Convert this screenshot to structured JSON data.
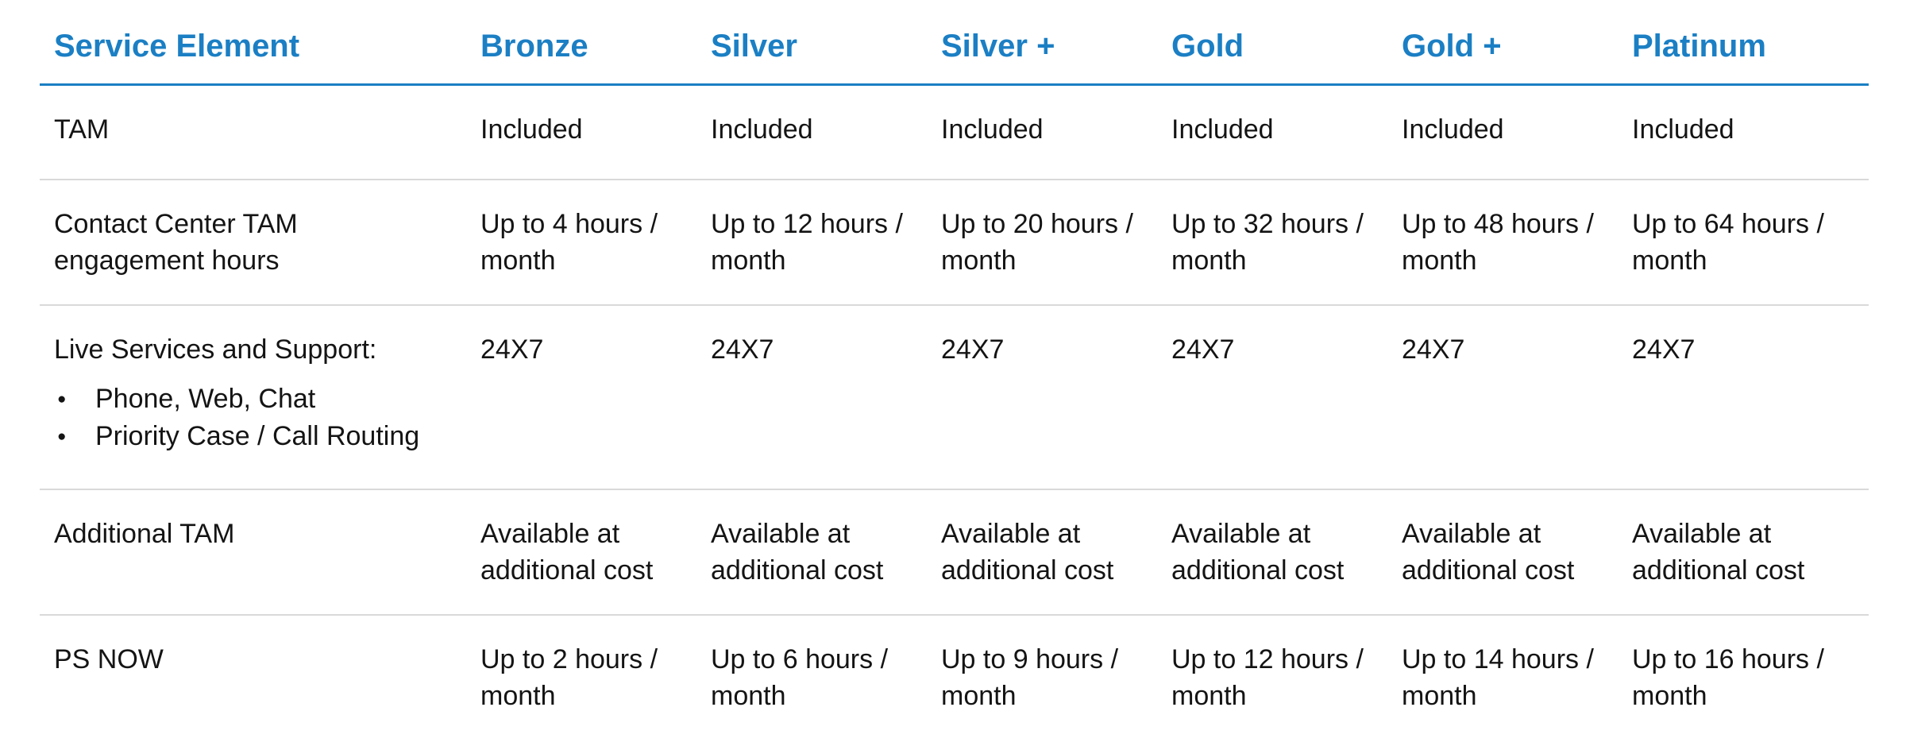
{
  "theme": {
    "accent_blue": "#1b7fc4",
    "text_color": "#141414",
    "divider_color": "#d9d9d9",
    "background": "#ffffff"
  },
  "table": {
    "columns": [
      "Service Element",
      "Bronze",
      "Silver",
      "Silver +",
      "Gold",
      "Gold +",
      "Platinum"
    ],
    "rows": [
      {
        "label": "TAM",
        "values": [
          "Included",
          "Included",
          "Included",
          "Included",
          "Included",
          "Included"
        ]
      },
      {
        "label": "Contact Center TAM engagement hours",
        "values": [
          "Up to 4 hours / month",
          "Up to 12 hours / month",
          "Up to 20 hours / month",
          "Up to 32 hours / month",
          "Up to 48 hours / month",
          "Up to 64 hours / month"
        ]
      },
      {
        "label": "Live Services and Support:",
        "bullets": [
          "Phone, Web, Chat",
          "Priority Case / Call Routing"
        ],
        "values": [
          "24X7",
          "24X7",
          "24X7",
          "24X7",
          "24X7",
          "24X7"
        ]
      },
      {
        "label": "Additional TAM",
        "values": [
          "Available at additional cost",
          "Available at additional cost",
          "Available at additional cost",
          "Available at additional cost",
          "Available at additional cost",
          "Available at additional cost"
        ]
      },
      {
        "label": "PS NOW",
        "values": [
          "Up to 2 hours / month",
          "Up to 6 hours / month",
          "Up to 9 hours / month",
          "Up to 12 hours / month",
          "Up to 14 hours / month",
          "Up to 16 hours / month"
        ]
      }
    ]
  }
}
